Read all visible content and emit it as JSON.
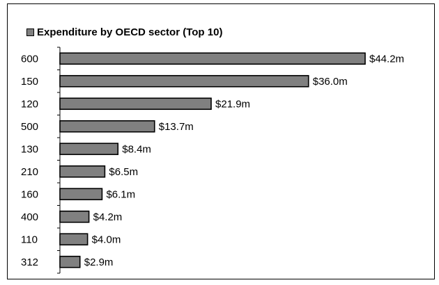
{
  "chart_data": {
    "type": "bar",
    "orientation": "horizontal",
    "legend": "top-left",
    "grid": false,
    "series": [
      {
        "name": "Expenditure by OECD sector (Top 10)",
        "color": "#808080",
        "categories": [
          "600",
          "150",
          "120",
          "500",
          "130",
          "210",
          "160",
          "400",
          "110",
          "312"
        ],
        "values": [
          44.2,
          36.0,
          21.9,
          13.7,
          8.4,
          6.5,
          6.1,
          4.2,
          4.0,
          2.9
        ],
        "value_labels": [
          "$44.2m",
          "$36.0m",
          "$21.9m",
          "$13.7m",
          "$8.4m",
          "$6.5m",
          "$6.1m",
          "$4.2m",
          "$4.0m",
          "$2.9m"
        ]
      }
    ],
    "xlim": [
      0,
      44.2
    ]
  }
}
